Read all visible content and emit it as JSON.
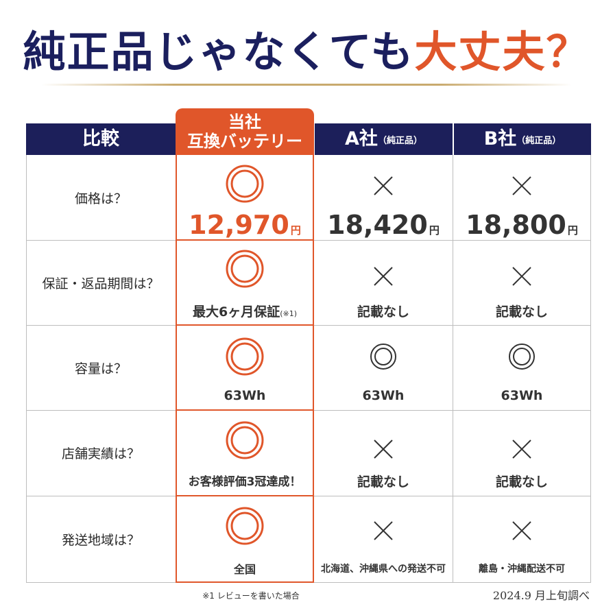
{
  "headline": {
    "part1": "純正品じゃなくても",
    "part2": "大丈夫？"
  },
  "colors": {
    "navy": "#1c1f5a",
    "accent": "#e0562a",
    "grid": "#bdbdbd"
  },
  "columns": {
    "compare": "比較",
    "ours_line1": "当社",
    "ours_line2": "互換バッテリー",
    "a_name": "A社",
    "a_sub": "（純正品）",
    "b_name": "B社",
    "b_sub": "（純正品）"
  },
  "rows": [
    {
      "question": "価格は？",
      "ours": {
        "mark": "double-circle",
        "value": "12,970",
        "unit": "円"
      },
      "a": {
        "mark": "cross",
        "value": "18,420",
        "unit": "円"
      },
      "b": {
        "mark": "cross",
        "value": "18,800",
        "unit": "円"
      }
    },
    {
      "question": "保証・返品期間は？",
      "ours": {
        "mark": "double-circle",
        "text": "最大6ヶ月保証",
        "note": "(※1)"
      },
      "a": {
        "mark": "cross",
        "text": "記載なし"
      },
      "b": {
        "mark": "cross",
        "text": "記載なし"
      }
    },
    {
      "question": "容量は？",
      "ours": {
        "mark": "double-circle",
        "text": "63Wh"
      },
      "a": {
        "mark": "double-circle",
        "text": "63Wh"
      },
      "b": {
        "mark": "double-circle",
        "text": "63Wh"
      }
    },
    {
      "question": "店舗実績は？",
      "ours": {
        "mark": "double-circle",
        "text": "お客様評価3冠達成！"
      },
      "a": {
        "mark": "cross",
        "text": "記載なし"
      },
      "b": {
        "mark": "cross",
        "text": "記載なし"
      }
    },
    {
      "question": "発送地域は？",
      "ours": {
        "mark": "double-circle",
        "text": "全国"
      },
      "a": {
        "mark": "cross",
        "text": "北海道、沖縄県への発送不可"
      },
      "b": {
        "mark": "cross",
        "text": "離島・沖縄配送不可"
      }
    }
  ],
  "footnote": "※1 レビューを書いた場合",
  "survey": "2024.9 月上旬調べ"
}
